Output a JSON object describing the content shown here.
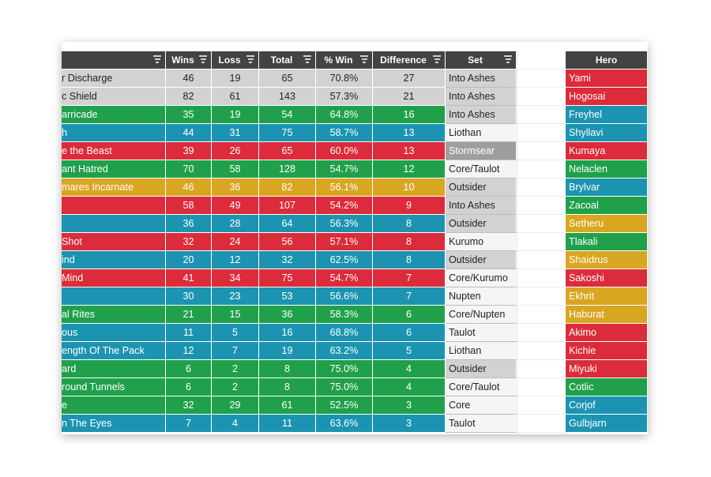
{
  "colors": {
    "red": "#dc2b3a",
    "green": "#20a04b",
    "blue": "#1c94b1",
    "yellow": "#d9a621",
    "gray": "#d2d2d2",
    "header": "#434343"
  },
  "table": {
    "headers": {
      "wins": "Wins",
      "loss": "Loss",
      "total": "Total",
      "pct_win": "% Win",
      "difference": "Difference",
      "set": "Set"
    },
    "rows": [
      {
        "name": "r Discharge",
        "wins": "46",
        "loss": "19",
        "total": "65",
        "pct": "70.8%",
        "diff": "27",
        "set": "Into Ashes",
        "color": "gray",
        "set_color": "gray"
      },
      {
        "name": "c Shield",
        "wins": "82",
        "loss": "61",
        "total": "143",
        "pct": "57.3%",
        "diff": "21",
        "set": "Into Ashes",
        "color": "gray",
        "set_color": "gray"
      },
      {
        "name": "arricade",
        "wins": "35",
        "loss": "19",
        "total": "54",
        "pct": "64.8%",
        "diff": "16",
        "set": "Into Ashes",
        "color": "green",
        "set_color": "gray"
      },
      {
        "name": "h",
        "wins": "44",
        "loss": "31",
        "total": "75",
        "pct": "58.7%",
        "diff": "13",
        "set": "Liothan",
        "color": "blue",
        "set_color": "white"
      },
      {
        "name": "e the Beast",
        "wins": "39",
        "loss": "26",
        "total": "65",
        "pct": "60.0%",
        "diff": "13",
        "set": "Stormsear",
        "color": "red",
        "set_color": "darkgray"
      },
      {
        "name": "ant Hatred",
        "wins": "70",
        "loss": "58",
        "total": "128",
        "pct": "54.7%",
        "diff": "12",
        "set": "Core/Taulot",
        "color": "green",
        "set_color": "white"
      },
      {
        "name": "mares Incarnate",
        "wins": "46",
        "loss": "36",
        "total": "82",
        "pct": "56.1%",
        "diff": "10",
        "set": "Outsider",
        "color": "yellow",
        "set_color": "gray"
      },
      {
        "name": "",
        "wins": "58",
        "loss": "49",
        "total": "107",
        "pct": "54.2%",
        "diff": "9",
        "set": "Into Ashes",
        "color": "red",
        "set_color": "gray"
      },
      {
        "name": "",
        "wins": "36",
        "loss": "28",
        "total": "64",
        "pct": "56.3%",
        "diff": "8",
        "set": "Outsider",
        "color": "blue",
        "set_color": "gray"
      },
      {
        "name": "Shot",
        "wins": "32",
        "loss": "24",
        "total": "56",
        "pct": "57.1%",
        "diff": "8",
        "set": "Kurumo",
        "color": "red",
        "set_color": "white"
      },
      {
        "name": "ind",
        "wins": "20",
        "loss": "12",
        "total": "32",
        "pct": "62.5%",
        "diff": "8",
        "set": "Outsider",
        "color": "blue",
        "set_color": "gray"
      },
      {
        "name": "Mind",
        "wins": "41",
        "loss": "34",
        "total": "75",
        "pct": "54.7%",
        "diff": "7",
        "set": "Core/Kurumo",
        "color": "red",
        "set_color": "white"
      },
      {
        "name": "",
        "wins": "30",
        "loss": "23",
        "total": "53",
        "pct": "56.6%",
        "diff": "7",
        "set": "Nupten",
        "color": "blue",
        "set_color": "white"
      },
      {
        "name": "al Rites",
        "wins": "21",
        "loss": "15",
        "total": "36",
        "pct": "58.3%",
        "diff": "6",
        "set": "Core/Nupten",
        "color": "green",
        "set_color": "white"
      },
      {
        "name": "ous",
        "wins": "11",
        "loss": "5",
        "total": "16",
        "pct": "68.8%",
        "diff": "6",
        "set": "Taulot",
        "color": "blue",
        "set_color": "white"
      },
      {
        "name": "ength Of The Pack",
        "wins": "12",
        "loss": "7",
        "total": "19",
        "pct": "63.2%",
        "diff": "5",
        "set": "Liothan",
        "color": "blue",
        "set_color": "white"
      },
      {
        "name": "ard",
        "wins": "6",
        "loss": "2",
        "total": "8",
        "pct": "75.0%",
        "diff": "4",
        "set": "Outsider",
        "color": "green",
        "set_color": "gray"
      },
      {
        "name": "round Tunnels",
        "wins": "6",
        "loss": "2",
        "total": "8",
        "pct": "75.0%",
        "diff": "4",
        "set": "Core/Taulot",
        "color": "green",
        "set_color": "white"
      },
      {
        "name": "e",
        "wins": "32",
        "loss": "29",
        "total": "61",
        "pct": "52.5%",
        "diff": "3",
        "set": "Core",
        "color": "green",
        "set_color": "white"
      },
      {
        "name": "n The Eyes",
        "wins": "7",
        "loss": "4",
        "total": "11",
        "pct": "63.6%",
        "diff": "3",
        "set": "Taulot",
        "color": "blue",
        "set_color": "white"
      }
    ]
  },
  "heroes": {
    "header": "Hero",
    "items": [
      {
        "name": "Yami",
        "color": "red"
      },
      {
        "name": "Hogosai",
        "color": "red"
      },
      {
        "name": "Freyhel",
        "color": "blue"
      },
      {
        "name": "Shyllavi",
        "color": "blue"
      },
      {
        "name": "Kumaya",
        "color": "red"
      },
      {
        "name": "Nelaclen",
        "color": "green"
      },
      {
        "name": "Brylvar",
        "color": "blue"
      },
      {
        "name": "Zacoal",
        "color": "green"
      },
      {
        "name": "Setheru",
        "color": "yellow"
      },
      {
        "name": "Tlakali",
        "color": "green"
      },
      {
        "name": "Shaidrus",
        "color": "yellow"
      },
      {
        "name": "Sakoshi",
        "color": "red"
      },
      {
        "name": "Ekhrit",
        "color": "yellow"
      },
      {
        "name": "Haburat",
        "color": "yellow"
      },
      {
        "name": "Akimo",
        "color": "red"
      },
      {
        "name": "Kichie",
        "color": "red"
      },
      {
        "name": "Miyuki",
        "color": "red"
      },
      {
        "name": "Cotlic",
        "color": "green"
      },
      {
        "name": "Corjof",
        "color": "blue"
      },
      {
        "name": "Gulbjarn",
        "color": "blue"
      }
    ]
  }
}
